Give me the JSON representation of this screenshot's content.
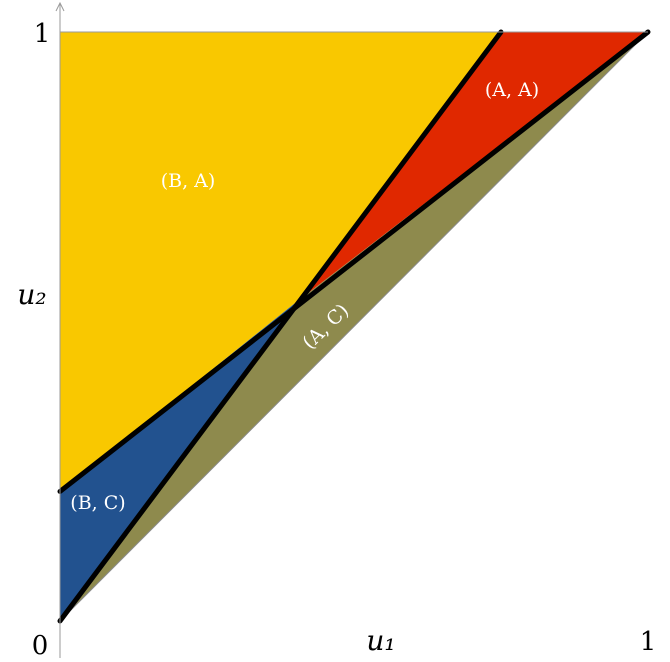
{
  "diagram": {
    "axes": {
      "x_label": "u₁",
      "y_label": "u₂",
      "origin_label": "0",
      "x_max_label": "1",
      "y_max_label": "1"
    },
    "regions": [
      {
        "id": "B-A",
        "label": "(B, A)",
        "color": "#f9c800",
        "polygon": [
          [
            0,
            1
          ],
          [
            0.75,
            1
          ],
          [
            0.4,
            0.54
          ],
          [
            0,
            0.22
          ]
        ]
      },
      {
        "id": "A-A",
        "label": "(A, A)",
        "color": "#e02800",
        "polygon": [
          [
            0.75,
            1
          ],
          [
            1,
            1
          ],
          [
            0.4,
            0.54
          ]
        ]
      },
      {
        "id": "A-C",
        "label": "(A, C)",
        "color": "#8e8a4d",
        "polygon": [
          [
            1,
            1
          ],
          [
            0.4,
            0.54
          ],
          [
            0,
            0
          ]
        ]
      },
      {
        "id": "B-C",
        "label": "(B, C)",
        "color": "#22528f",
        "polygon": [
          [
            0,
            0.22
          ],
          [
            0.4,
            0.54
          ],
          [
            0,
            0
          ]
        ]
      }
    ],
    "boundaries": [
      {
        "id": "steep-boundary",
        "from": [
          0,
          0
        ],
        "to": [
          0.75,
          1
        ]
      },
      {
        "id": "shallow-boundary",
        "from": [
          0,
          0.22
        ],
        "to": [
          1,
          1
        ]
      }
    ],
    "diagonal": {
      "from": [
        0,
        0
      ],
      "to": [
        1,
        1
      ],
      "color": "#8a8a8a"
    }
  }
}
